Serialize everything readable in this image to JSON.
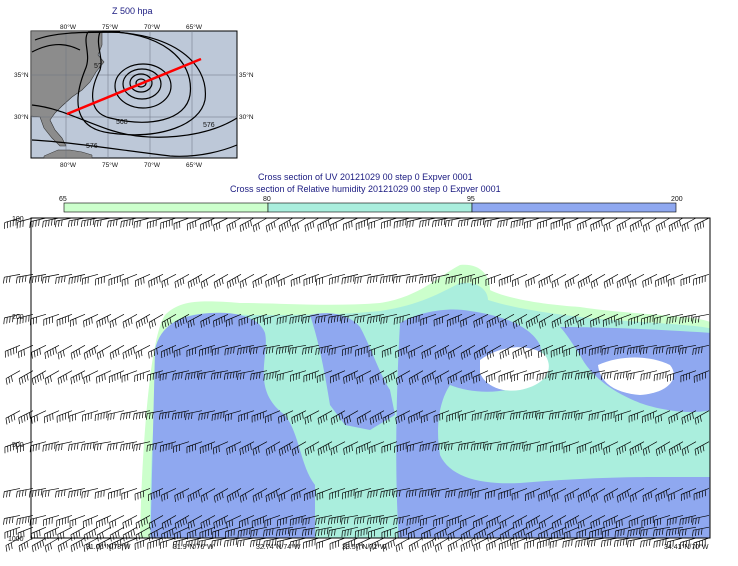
{
  "map": {
    "title": "Z 500 hpa",
    "lon_labels": [
      "80°W",
      "75°W",
      "70°W",
      "65°W"
    ],
    "lat_labels": [
      "35°N",
      "30°N"
    ],
    "contour_labels": [
      "576",
      "568",
      "576",
      "5?"
    ],
    "section_line": {
      "start": [
        "30.4°N",
        "80°W"
      ],
      "end": [
        "36.5°N",
        "64°W"
      ]
    },
    "colors": {
      "land": "#8c8c8c",
      "sea": "#bdc8d8",
      "line": "#ff0000"
    }
  },
  "section": {
    "title_uv": "Cross section of UV 20121029 00 step 0 Expver 0001",
    "title_rh": "Cross section of Relative humidity 20121029 00 step 0 Expver 0001"
  },
  "colorbar": {
    "labels": [
      "65",
      "80",
      "95",
      "200"
    ],
    "colors": [
      "#ccffcc",
      "#aaeedd",
      "#8fa8f0"
    ]
  },
  "chart_data": {
    "type": "heatmap",
    "title": "Cross section of Relative humidity 20121029 00 step 0 Expver 0001",
    "y_axis": {
      "label": "",
      "scale": "log",
      "range": [
        1000,
        100
      ],
      "ticks": [
        100,
        200,
        500,
        1000
      ]
    },
    "x_axis": {
      "label": "",
      "ticks": [
        "31.06°N/78°W",
        "31.9°N/76°W",
        "32.74°N/74°W",
        "33.57°N/72°W",
        "34.41°N/70°W"
      ]
    },
    "legend": {
      "levels": [
        65,
        80,
        95,
        200
      ],
      "colors": [
        "#ccffcc",
        "#aaeedd",
        "#8fa8f0"
      ]
    },
    "wind_barb_levels": [
      100,
      150,
      200,
      250,
      300,
      400,
      500,
      700,
      850,
      925,
      1000
    ]
  }
}
